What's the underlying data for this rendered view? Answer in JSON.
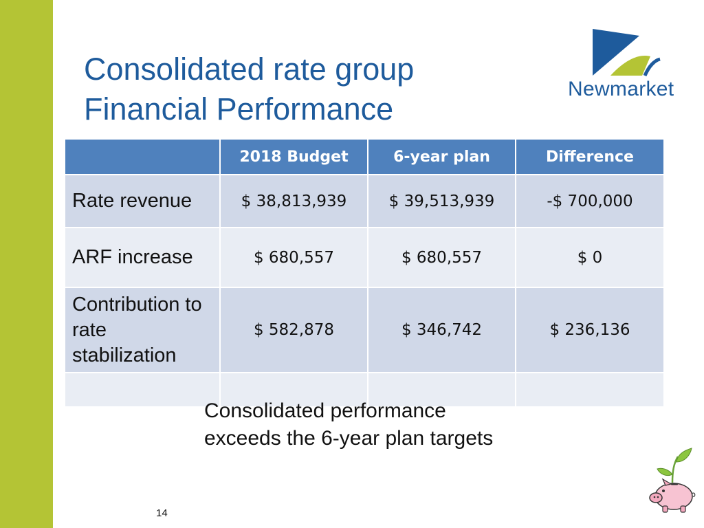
{
  "slide": {
    "title_line1": "Consolidated rate group",
    "title_line2": "Financial Performance",
    "logo_text": "Newmarket",
    "note_line1": "Consolidated performance",
    "note_line2": "exceeds the 6-year plan targets",
    "page_number": "14"
  },
  "table": {
    "headers": [
      "",
      "2018 Budget",
      "6-year plan",
      "Difference"
    ],
    "rows": [
      {
        "label": "Rate revenue",
        "budget": "$ 38,813,939",
        "plan": "$ 39,513,939",
        "difference": "-$ 700,000"
      },
      {
        "label": "ARF increase",
        "budget": "$ 680,557",
        "plan": "$ 680,557",
        "difference": "$ 0"
      },
      {
        "label": "Contribution to rate stabilization",
        "budget": "$ 582,878",
        "plan": "$ 346,742",
        "difference": "$ 236,136"
      },
      {
        "label": "",
        "budget": "",
        "plan": "",
        "difference": ""
      }
    ]
  },
  "colors": {
    "accent_green": "#b4c435",
    "title_blue": "#1e5b9c",
    "header_blue": "#4f81bd",
    "row_odd": "#d0d8e8",
    "row_even": "#e9edf4"
  },
  "icons": {
    "logo": "newmarket-logo-icon",
    "mascot": "piggy-bank-sprout-icon"
  }
}
